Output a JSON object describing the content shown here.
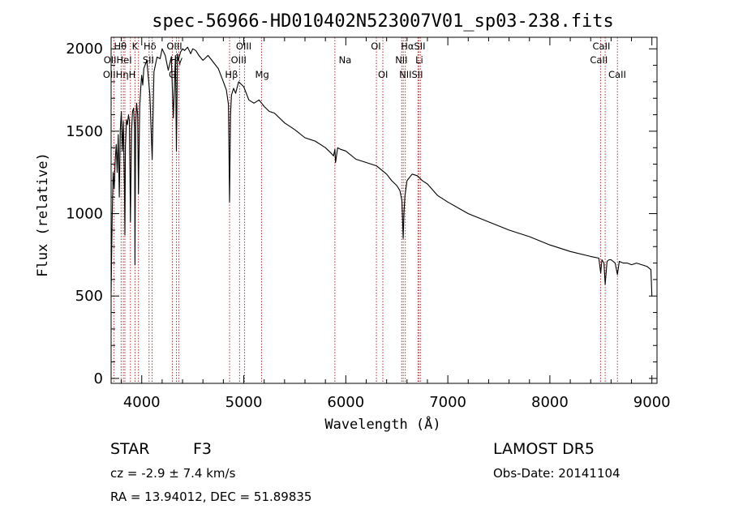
{
  "chart_data": {
    "type": "line",
    "title": "spec-56966-HD010402N523007V01_sp03-238.fits",
    "xlabel": "Wavelength (Å)",
    "ylabel": "Flux (relative)",
    "xlim": [
      3700,
      9050
    ],
    "ylim": [
      -30,
      2070
    ],
    "xticks": [
      4000,
      5000,
      6000,
      7000,
      8000,
      9000
    ],
    "yticks": [
      0,
      500,
      1000,
      1500,
      2000
    ],
    "grid": false,
    "line_color": "#000000",
    "marker_color": "#b03030",
    "series": [
      {
        "x": [
          3700,
          3710,
          3720,
          3730,
          3740,
          3750,
          3760,
          3770,
          3780,
          3790,
          3800,
          3810,
          3820,
          3830,
          3835,
          3840,
          3850,
          3860,
          3870,
          3880,
          3889,
          3900,
          3910,
          3920,
          3930,
          3934,
          3940,
          3950,
          3960,
          3968,
          3980,
          3990,
          4000,
          4010,
          4020,
          4050,
          4080,
          4102,
          4120,
          4150,
          4180,
          4200,
          4230,
          4260,
          4290,
          4310,
          4330,
          4340,
          4350,
          4360,
          4380,
          4400,
          4420,
          4450,
          4480,
          4500,
          4530,
          4560,
          4600,
          4650,
          4700,
          4750,
          4800,
          4830,
          4850,
          4861,
          4870,
          4880,
          4900,
          4920,
          4950,
          5000,
          5050,
          5100,
          5150,
          5200,
          5250,
          5300,
          5400,
          5500,
          5600,
          5700,
          5800,
          5850,
          5880,
          5893,
          5900,
          5920,
          5950,
          6000,
          6100,
          6200,
          6300,
          6400,
          6450,
          6500,
          6530,
          6550,
          6563,
          6570,
          6580,
          6600,
          6650,
          6700,
          6750,
          6800,
          6900,
          7000,
          7200,
          7400,
          7600,
          7800,
          8000,
          8200,
          8400,
          8480,
          8498,
          8510,
          8530,
          8542,
          8560,
          8580,
          8600,
          8640,
          8662,
          8680,
          8720,
          8760,
          8800,
          8850,
          8900,
          8950,
          8990,
          9000
        ],
        "y": [
          520,
          980,
          1250,
          1150,
          1320,
          1420,
          1250,
          1480,
          1100,
          1510,
          1620,
          1380,
          1560,
          1160,
          870,
          1400,
          1570,
          1540,
          1600,
          1560,
          950,
          1500,
          1620,
          1640,
          1520,
          690,
          1530,
          1670,
          1600,
          1120,
          1640,
          1760,
          1840,
          1780,
          1880,
          1930,
          1720,
          1330,
          1860,
          1950,
          1940,
          2000,
          1960,
          1870,
          1950,
          1580,
          1960,
          1380,
          1970,
          1930,
          1980,
          2000,
          1990,
          2010,
          1970,
          2000,
          1990,
          1960,
          1930,
          1960,
          1920,
          1880,
          1800,
          1750,
          1660,
          1070,
          1600,
          1720,
          1760,
          1730,
          1800,
          1770,
          1690,
          1670,
          1690,
          1650,
          1620,
          1610,
          1550,
          1510,
          1460,
          1440,
          1400,
          1370,
          1350,
          1390,
          1310,
          1400,
          1390,
          1380,
          1330,
          1310,
          1290,
          1240,
          1200,
          1170,
          1140,
          1080,
          850,
          1000,
          1110,
          1200,
          1240,
          1230,
          1200,
          1180,
          1110,
          1070,
          1000,
          950,
          900,
          860,
          810,
          770,
          740,
          730,
          640,
          720,
          700,
          570,
          710,
          720,
          720,
          700,
          630,
          710,
          700,
          700,
          690,
          700,
          690,
          680,
          660,
          500
        ]
      }
    ],
    "line_markers": [
      {
        "x": 3727,
        "labels": [
          "OII"
        ]
      },
      {
        "x": 3798,
        "labels": [
          "Hθ"
        ]
      },
      {
        "x": 3820,
        "labels": [
          "HeI"
        ]
      },
      {
        "x": 3835,
        "labels": [
          "Hη"
        ]
      },
      {
        "x": 3889,
        "labels": [
          "HeI"
        ]
      },
      {
        "x": 3934,
        "labels": [
          "K"
        ]
      },
      {
        "x": 3968,
        "labels": [
          "H"
        ]
      },
      {
        "x": 4072,
        "labels": [
          "SII"
        ]
      },
      {
        "x": 4102,
        "labels": [
          "Hδ"
        ]
      },
      {
        "x": 4300,
        "labels": [
          "G"
        ]
      },
      {
        "x": 4340,
        "labels": [
          "Hγ"
        ]
      },
      {
        "x": 4363,
        "labels": [
          "OIII"
        ]
      },
      {
        "x": 4861,
        "labels": [
          "Hβ"
        ]
      },
      {
        "x": 4959,
        "labels": [
          "OIII"
        ]
      },
      {
        "x": 5007,
        "labels": [
          "OIII"
        ]
      },
      {
        "x": 5175,
        "labels": [
          "Mg"
        ]
      },
      {
        "x": 5893,
        "labels": [
          "Na"
        ]
      },
      {
        "x": 6300,
        "labels": [
          "OI"
        ]
      },
      {
        "x": 6363,
        "labels": [
          "OI"
        ]
      },
      {
        "x": 6548,
        "labels": [
          "NII"
        ]
      },
      {
        "x": 6563,
        "labels": [
          "Hα"
        ]
      },
      {
        "x": 6583,
        "labels": [
          "NII"
        ]
      },
      {
        "x": 6707,
        "labels": [
          "Li"
        ]
      },
      {
        "x": 6716,
        "labels": [
          "SII"
        ]
      },
      {
        "x": 6731,
        "labels": [
          "SII"
        ]
      },
      {
        "x": 8498,
        "labels": [
          "CaII"
        ]
      },
      {
        "x": 8542,
        "labels": [
          "CaII"
        ]
      },
      {
        "x": 8662,
        "labels": [
          "CaII"
        ]
      }
    ],
    "marker_texts": [
      {
        "text": "Hθ",
        "x": 3790,
        "row": 0
      },
      {
        "text": "K",
        "x": 3934,
        "row": 0
      },
      {
        "text": "Hδ",
        "x": 4080,
        "row": 0
      },
      {
        "text": "OIII",
        "x": 4320,
        "row": 0
      },
      {
        "text": "OIII",
        "x": 5000,
        "row": 0
      },
      {
        "text": "OI",
        "x": 6295,
        "row": 0
      },
      {
        "text": "HαSII",
        "x": 6660,
        "row": 0
      },
      {
        "text": "CaII",
        "x": 8505,
        "row": 0
      },
      {
        "text": "OIIHeI",
        "x": 3765,
        "row": 1
      },
      {
        "text": "SII",
        "x": 4065,
        "row": 1
      },
      {
        "text": "Hγ",
        "x": 4340,
        "row": 1
      },
      {
        "text": "OIII",
        "x": 4950,
        "row": 1
      },
      {
        "text": "Na",
        "x": 5993,
        "row": 1
      },
      {
        "text": "NII",
        "x": 6545,
        "row": 1
      },
      {
        "text": "Li",
        "x": 6720,
        "row": 1
      },
      {
        "text": "CaII",
        "x": 8480,
        "row": 1
      },
      {
        "text": "OIIHηH",
        "x": 3780,
        "row": 2
      },
      {
        "text": "G",
        "x": 4300,
        "row": 2
      },
      {
        "text": "Hβ",
        "x": 4880,
        "row": 2
      },
      {
        "text": "Mg",
        "x": 5180,
        "row": 2
      },
      {
        "text": "OI",
        "x": 6365,
        "row": 2
      },
      {
        "text": "NIISII",
        "x": 6640,
        "row": 2
      },
      {
        "text": "CaII",
        "x": 8660,
        "row": 2
      }
    ]
  },
  "info": {
    "object_type": "STAR",
    "subclass": "F3",
    "survey": "LAMOST DR5",
    "velocity": "cz = -2.9 ± 7.4 km/s",
    "obs_date": "Obs-Date: 20141104",
    "coords": "RA =  13.94012, DEC =  51.89835"
  }
}
